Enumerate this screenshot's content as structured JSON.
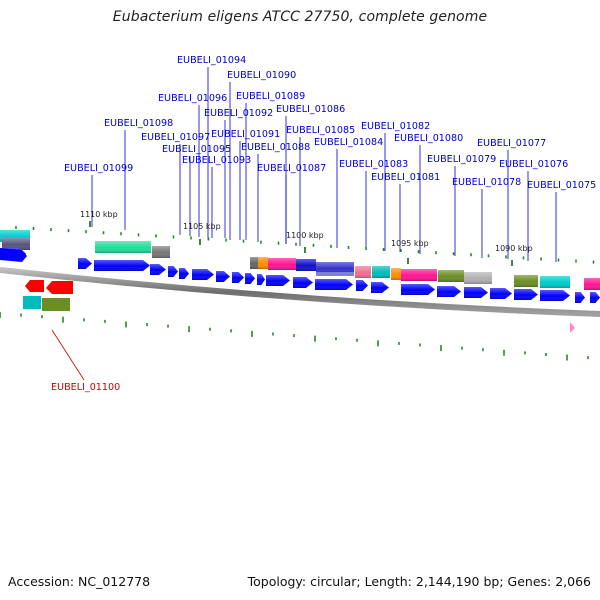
{
  "title": "Eubacterium eligens ATCC 27750, complete genome",
  "footer": {
    "accession": "Accession: NC_012778",
    "summary": "Topology: circular; Length: 2,144,190 bp; Genes: 2,066"
  },
  "scale_labels": [
    "1110 kbp",
    "1105 kbp",
    "1100 kbp",
    "1095 kbp",
    "1090 kbp"
  ],
  "gene_labels": [
    "EUBELI_01094",
    "EUBELI_01090",
    "EUBELI_01089",
    "EUBELI_01096",
    "EUBELI_01092",
    "EUBELI_01086",
    "EUBELI_01098",
    "EUBELI_01085",
    "EUBELI_01082",
    "EUBELI_01097",
    "EUBELI_01091",
    "EUBELI_01084",
    "EUBELI_01080",
    "EUBELI_01077",
    "EUBELI_01095",
    "EUBELI_01088",
    "EUBELI_01093",
    "EUBELI_01079",
    "EUBELI_01083",
    "EUBELI_01076",
    "EUBELI_01099",
    "EUBELI_01087",
    "EUBELI_01081",
    "EUBELI_01078",
    "EUBELI_01075",
    "EUBELI_01100"
  ],
  "colors": {
    "forward_strand": "#0000ff",
    "reverse_strand": "#ff0000",
    "label_forward": "#0000cc",
    "label_reverse": "#cc0000",
    "gc_skew": "#228b22"
  }
}
